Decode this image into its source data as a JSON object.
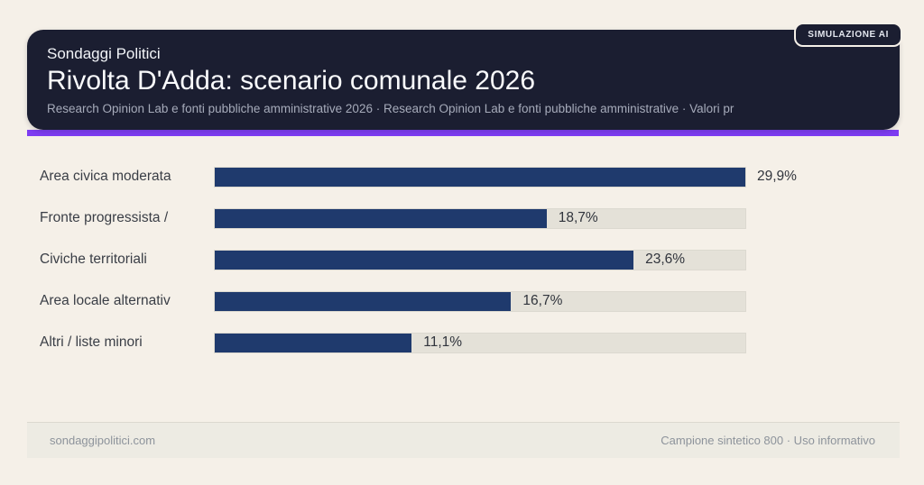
{
  "badge": {
    "label": "SIMULAZIONE AI"
  },
  "header": {
    "kicker": "Sondaggi Politici",
    "title": "Rivolta D'Adda: scenario comunale 2026",
    "subtitle": "Research Opinion Lab e fonti pubbliche amministrative 2026 · Research Opinion Lab e fonti pubbliche amministrative · Valori pr"
  },
  "chart_data": {
    "type": "bar",
    "orientation": "horizontal",
    "title": "Rivolta D'Adda: scenario comunale 2026",
    "categories": [
      "Area civica moderata",
      "Fronte progressista /",
      "Civiche territoriali",
      "Area locale alternativ",
      "Altri / liste minori"
    ],
    "values": [
      29.9,
      18.7,
      23.6,
      16.7,
      11.1
    ],
    "value_labels": [
      "29,9%",
      "18,7%",
      "23,6%",
      "16,7%",
      "11,1%"
    ],
    "unit": "percent",
    "scale_max": 29.9,
    "grid": false,
    "legend": false,
    "colors": {
      "bar": "#1f3a6d",
      "track": "#e4e1d8",
      "accent": "#7d3cf2",
      "header_bg": "#1b1e31",
      "page_bg": "#f5f0e8"
    }
  },
  "footer": {
    "left": "sondaggipolitici.com",
    "right": "Campione sintetico 800 · Uso informativo"
  }
}
